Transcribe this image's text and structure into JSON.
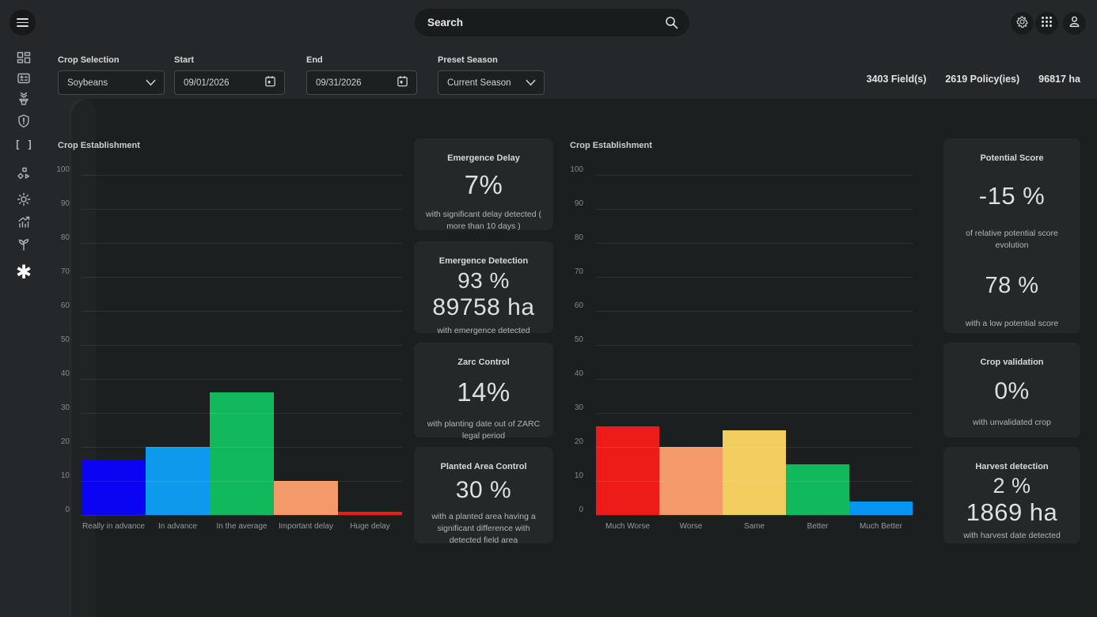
{
  "topbar": {
    "search_placeholder": "Search",
    "icons": [
      "menu-icon",
      "search-icon",
      "gear-icon",
      "apps-grid-icon",
      "user-icon"
    ]
  },
  "filters": {
    "crop_label": "Crop Selection",
    "crop_value": "Soybeans",
    "start_label": "Start",
    "start_value": "09/01/2026",
    "end_label": "End",
    "end_value": "09/31/2026",
    "season_label": "Preset Season",
    "season_value": "Current Season",
    "stats": {
      "fields": "3403 Field(s)",
      "policies": "2619 Policy(ies)",
      "area": "96817 ha"
    }
  },
  "sidebar": {
    "icons": [
      "dashboard-grid-icon",
      "policy-card-icon",
      "plant-pot-icon",
      "shield-icon",
      "brackets-icon",
      "workflow-icon",
      "sun-icon",
      "chart-trend-icon",
      "seedling-icon",
      "asterisk-icon"
    ]
  },
  "cards": {
    "emergence_delay": {
      "title": "Emergence Delay",
      "value": "7%",
      "desc": "with significant delay detected ( more than 10 days )"
    },
    "emergence_detection": {
      "title": "Emergence Detection",
      "value": "93 %",
      "value2": "89758 ha",
      "desc": "with emergence detected"
    },
    "zarc_control": {
      "title": "Zarc Control",
      "value": "14%",
      "desc": "with planting date out of ZARC legal period"
    },
    "planted_area_control": {
      "title": "Planted Area Control",
      "value": "30 %",
      "desc": "with a planted area having a significant difference with detected field area"
    },
    "potential_score": {
      "title": "Potential Score",
      "value": "-15 %",
      "desc": "of relative potential score evolution",
      "value2": "78 %",
      "desc2": "with a low potential score"
    },
    "crop_validation": {
      "title": "Crop validation",
      "value": "0%",
      "desc": "with unvalidated crop"
    },
    "harvest_detection": {
      "title": "Harvest detection",
      "value": "2 %",
      "value2": "1869 ha",
      "desc": "with harvest date detected"
    }
  },
  "chart_data": [
    {
      "type": "bar",
      "title": "Crop Establishment",
      "categories": [
        "Really in advance",
        "In advance",
        "In the average",
        "Important delay",
        "Huge delay"
      ],
      "values": [
        16,
        20,
        36,
        10,
        1
      ],
      "colors": [
        "#0b04f2",
        "#0e9aec",
        "#11b85c",
        "#f4996a",
        "#ee1c18"
      ],
      "xlabel": "",
      "ylabel": "",
      "ylim": [
        0,
        100
      ],
      "ytick_step": 10,
      "grid": true,
      "legend": "none"
    },
    {
      "type": "bar",
      "title": "Crop Establishment",
      "categories": [
        "Much Worse",
        "Worse",
        "Same",
        "Better",
        "Much Better"
      ],
      "values": [
        26,
        20,
        25,
        15,
        4
      ],
      "colors": [
        "#ee1c18",
        "#f4996a",
        "#f2cd5f",
        "#11b85c",
        "#0696f0"
      ],
      "xlabel": "",
      "ylabel": "",
      "ylim": [
        0,
        100
      ],
      "ytick_step": 10,
      "grid": true,
      "legend": "none"
    }
  ]
}
